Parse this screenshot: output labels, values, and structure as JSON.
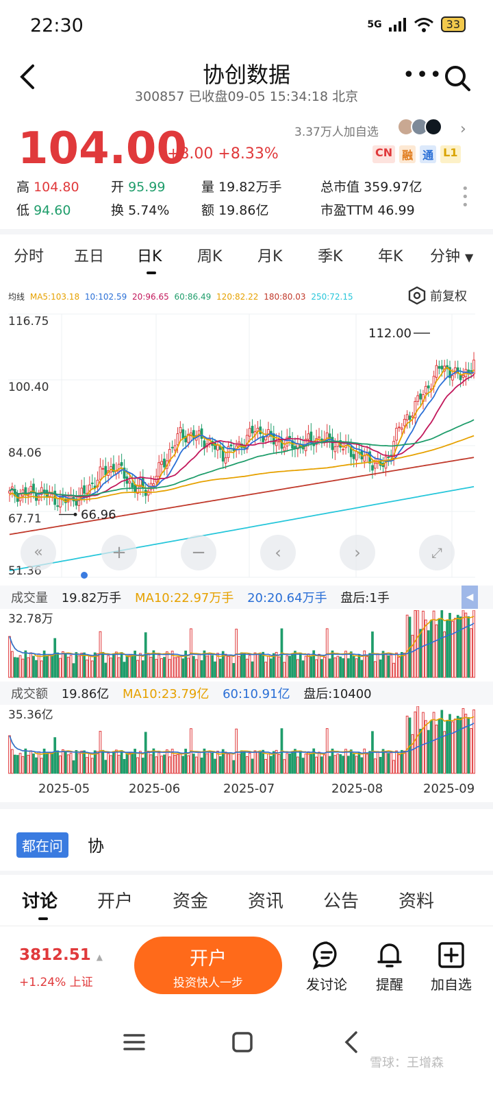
{
  "status": {
    "time": "22:30",
    "network": "5G",
    "battery": "33"
  },
  "header": {
    "title": "协创数据",
    "subtitle": "300857 已收盘09-05 15:34:18 北京"
  },
  "quote": {
    "price": "104.00",
    "change": "+8.00",
    "change_pct": "+8.33%",
    "followers": "3.37万人加自选",
    "tags": [
      "CN",
      "融",
      "通",
      "L1"
    ],
    "high_label": "高",
    "high": "104.80",
    "low_label": "低",
    "low": "94.60",
    "open_label": "开",
    "open": "95.99",
    "turnover_label": "换",
    "turnover": "5.74%",
    "volume_label": "量",
    "volume": "19.82万手",
    "amount_label": "额",
    "amount": "19.86亿",
    "mktcap_label": "总市值",
    "mktcap": "359.97亿",
    "pe_label": "市盈TTM",
    "pe": "46.99"
  },
  "period_tabs": [
    "分时",
    "五日",
    "日K",
    "周K",
    "月K",
    "季K",
    "年K",
    "分钟"
  ],
  "active_period": "日K",
  "ma": {
    "label": "均线",
    "items": [
      {
        "text": "MA5:103.18",
        "color": "#e6a100"
      },
      {
        "text": "10:102.59",
        "color": "#2a6fd6"
      },
      {
        "text": "20:96.65",
        "color": "#c2185b"
      },
      {
        "text": "60:86.49",
        "color": "#1f9d6b"
      },
      {
        "text": "120:82.22",
        "color": "#e6a100"
      },
      {
        "text": "180:80.03",
        "color": "#c0392b"
      },
      {
        "text": "250:72.15",
        "color": "#26c6da"
      }
    ],
    "adjust": "前复权"
  },
  "chart_data": {
    "type": "candlestick",
    "y_ticks": [
      "116.75",
      "100.40",
      "84.06",
      "67.71",
      "51.36"
    ],
    "ylim": [
      51.36,
      116.75
    ],
    "max_marker": "112.00",
    "min_marker": "66.96",
    "x_ticks": [
      "2025-05",
      "2025-06",
      "2025-07",
      "2025-08",
      "2025-09"
    ]
  },
  "volume": {
    "label": "成交量",
    "value": "19.82万手",
    "ma10": "MA10:22.97万手",
    "ma20": "20:20.64万手",
    "after": "盘后:1手",
    "max_tick": "32.78万"
  },
  "amount": {
    "label": "成交额",
    "value": "19.86亿",
    "ma10": "MA10:23.79亿",
    "ma60": "60:10.91亿",
    "after": "盘后:10400",
    "max_tick": "35.36亿"
  },
  "ask": {
    "badge": "都在问",
    "text": "协"
  },
  "bottom_tabs": [
    "讨论",
    "开户",
    "资金",
    "资讯",
    "公告",
    "资料"
  ],
  "footer": {
    "index_value": "3812.51",
    "index_change": "+1.24% 上证",
    "open_title": "开户",
    "open_sub": "投资快人一步",
    "discuss": "发讨论",
    "remind": "提醒",
    "add_watch": "加自选"
  },
  "watermark": "雪球：王增森"
}
